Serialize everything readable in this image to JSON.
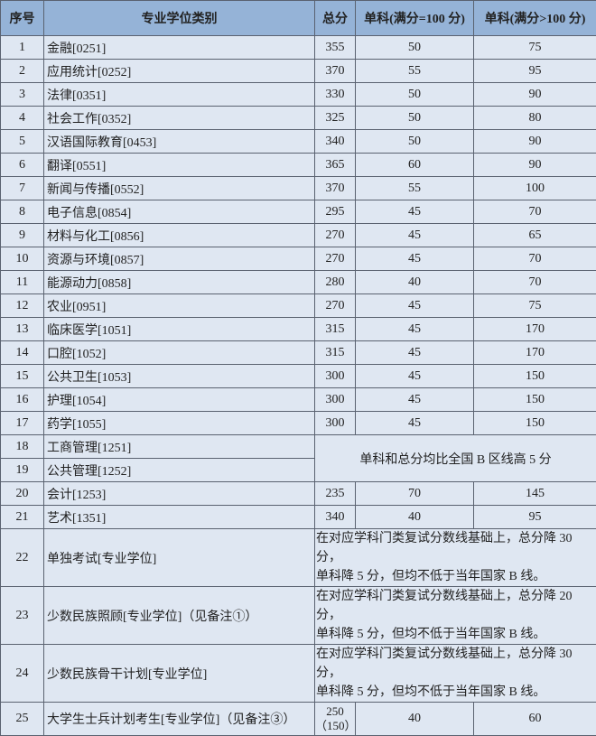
{
  "header": {
    "no": "序号",
    "category": "专业学位类别",
    "total": "总分",
    "single_eq100": "单科(满分=100 分)",
    "single_gt100": "单科(满分>100 分)"
  },
  "rows": [
    {
      "no": "1",
      "name": "金融[0251]",
      "total": "355",
      "s100": "50",
      "sgt": "75"
    },
    {
      "no": "2",
      "name": "应用统计[0252]",
      "total": "370",
      "s100": "55",
      "sgt": "95"
    },
    {
      "no": "3",
      "name": "法律[0351]",
      "total": "330",
      "s100": "50",
      "sgt": "90"
    },
    {
      "no": "4",
      "name": "社会工作[0352]",
      "total": "325",
      "s100": "50",
      "sgt": "80"
    },
    {
      "no": "5",
      "name": "汉语国际教育[0453]",
      "total": "340",
      "s100": "50",
      "sgt": "90"
    },
    {
      "no": "6",
      "name": "翻译[0551]",
      "total": "365",
      "s100": "60",
      "sgt": "90"
    },
    {
      "no": "7",
      "name": "新闻与传播[0552]",
      "total": "370",
      "s100": "55",
      "sgt": "100"
    },
    {
      "no": "8",
      "name": "电子信息[0854]",
      "total": "295",
      "s100": "45",
      "sgt": "70"
    },
    {
      "no": "9",
      "name": "材料与化工[0856]",
      "total": "270",
      "s100": "45",
      "sgt": "65"
    },
    {
      "no": "10",
      "name": "资源与环境[0857]",
      "total": "270",
      "s100": "45",
      "sgt": "70"
    },
    {
      "no": "11",
      "name": "能源动力[0858]",
      "total": "280",
      "s100": "40",
      "sgt": "70"
    },
    {
      "no": "12",
      "name": "农业[0951]",
      "total": "270",
      "s100": "45",
      "sgt": "75"
    },
    {
      "no": "13",
      "name": "临床医学[1051]",
      "total": "315",
      "s100": "45",
      "sgt": "170"
    },
    {
      "no": "14",
      "name": "口腔[1052]",
      "total": "315",
      "s100": "45",
      "sgt": "170"
    },
    {
      "no": "15",
      "name": "公共卫生[1053]",
      "total": "300",
      "s100": "45",
      "sgt": "150"
    },
    {
      "no": "16",
      "name": "护理[1054]",
      "total": "300",
      "s100": "45",
      "sgt": "150"
    },
    {
      "no": "17",
      "name": "药学[1055]",
      "total": "300",
      "s100": "45",
      "sgt": "150"
    }
  ],
  "merged_rows": {
    "r18": {
      "no": "18",
      "name": "工商管理[1251]"
    },
    "r19": {
      "no": "19",
      "name": "公共管理[1252]"
    },
    "note": "单科和总分均比全国 B 区线高 5 分"
  },
  "rows2": [
    {
      "no": "20",
      "name": "会计[1253]",
      "total": "235",
      "s100": "70",
      "sgt": "145"
    },
    {
      "no": "21",
      "name": "艺术[1351]",
      "total": "340",
      "s100": "40",
      "sgt": "95"
    }
  ],
  "special_rows": [
    {
      "no": "22",
      "name": "单独考试[专业学位]",
      "note1": "在对应学科门类复试分数线基础上，总分降 30 分，",
      "note2": "单科降 5 分，但均不低于当年国家 B 线。"
    },
    {
      "no": "23",
      "name": "少数民族照顾[专业学位]（见备注①）",
      "note1": "在对应学科门类复试分数线基础上，总分降 20 分，",
      "note2": "单科降 5 分，但均不低于当年国家 B 线。"
    },
    {
      "no": "24",
      "name": "少数民族骨干计划[专业学位]",
      "note1": "在对应学科门类复试分数线基础上，总分降 30 分，",
      "note2": "单科降 5 分，但均不低于当年国家 B 线。"
    }
  ],
  "last_row": {
    "no": "25",
    "name": "大学生士兵计划考生[专业学位]（见备注③）",
    "total1": "250",
    "total2": "（150）",
    "s100": "40",
    "sgt": "60"
  },
  "colors": {
    "header_bg": "#95b3d7",
    "body_bg": "#dfe7f2",
    "border": "#5a6270"
  }
}
